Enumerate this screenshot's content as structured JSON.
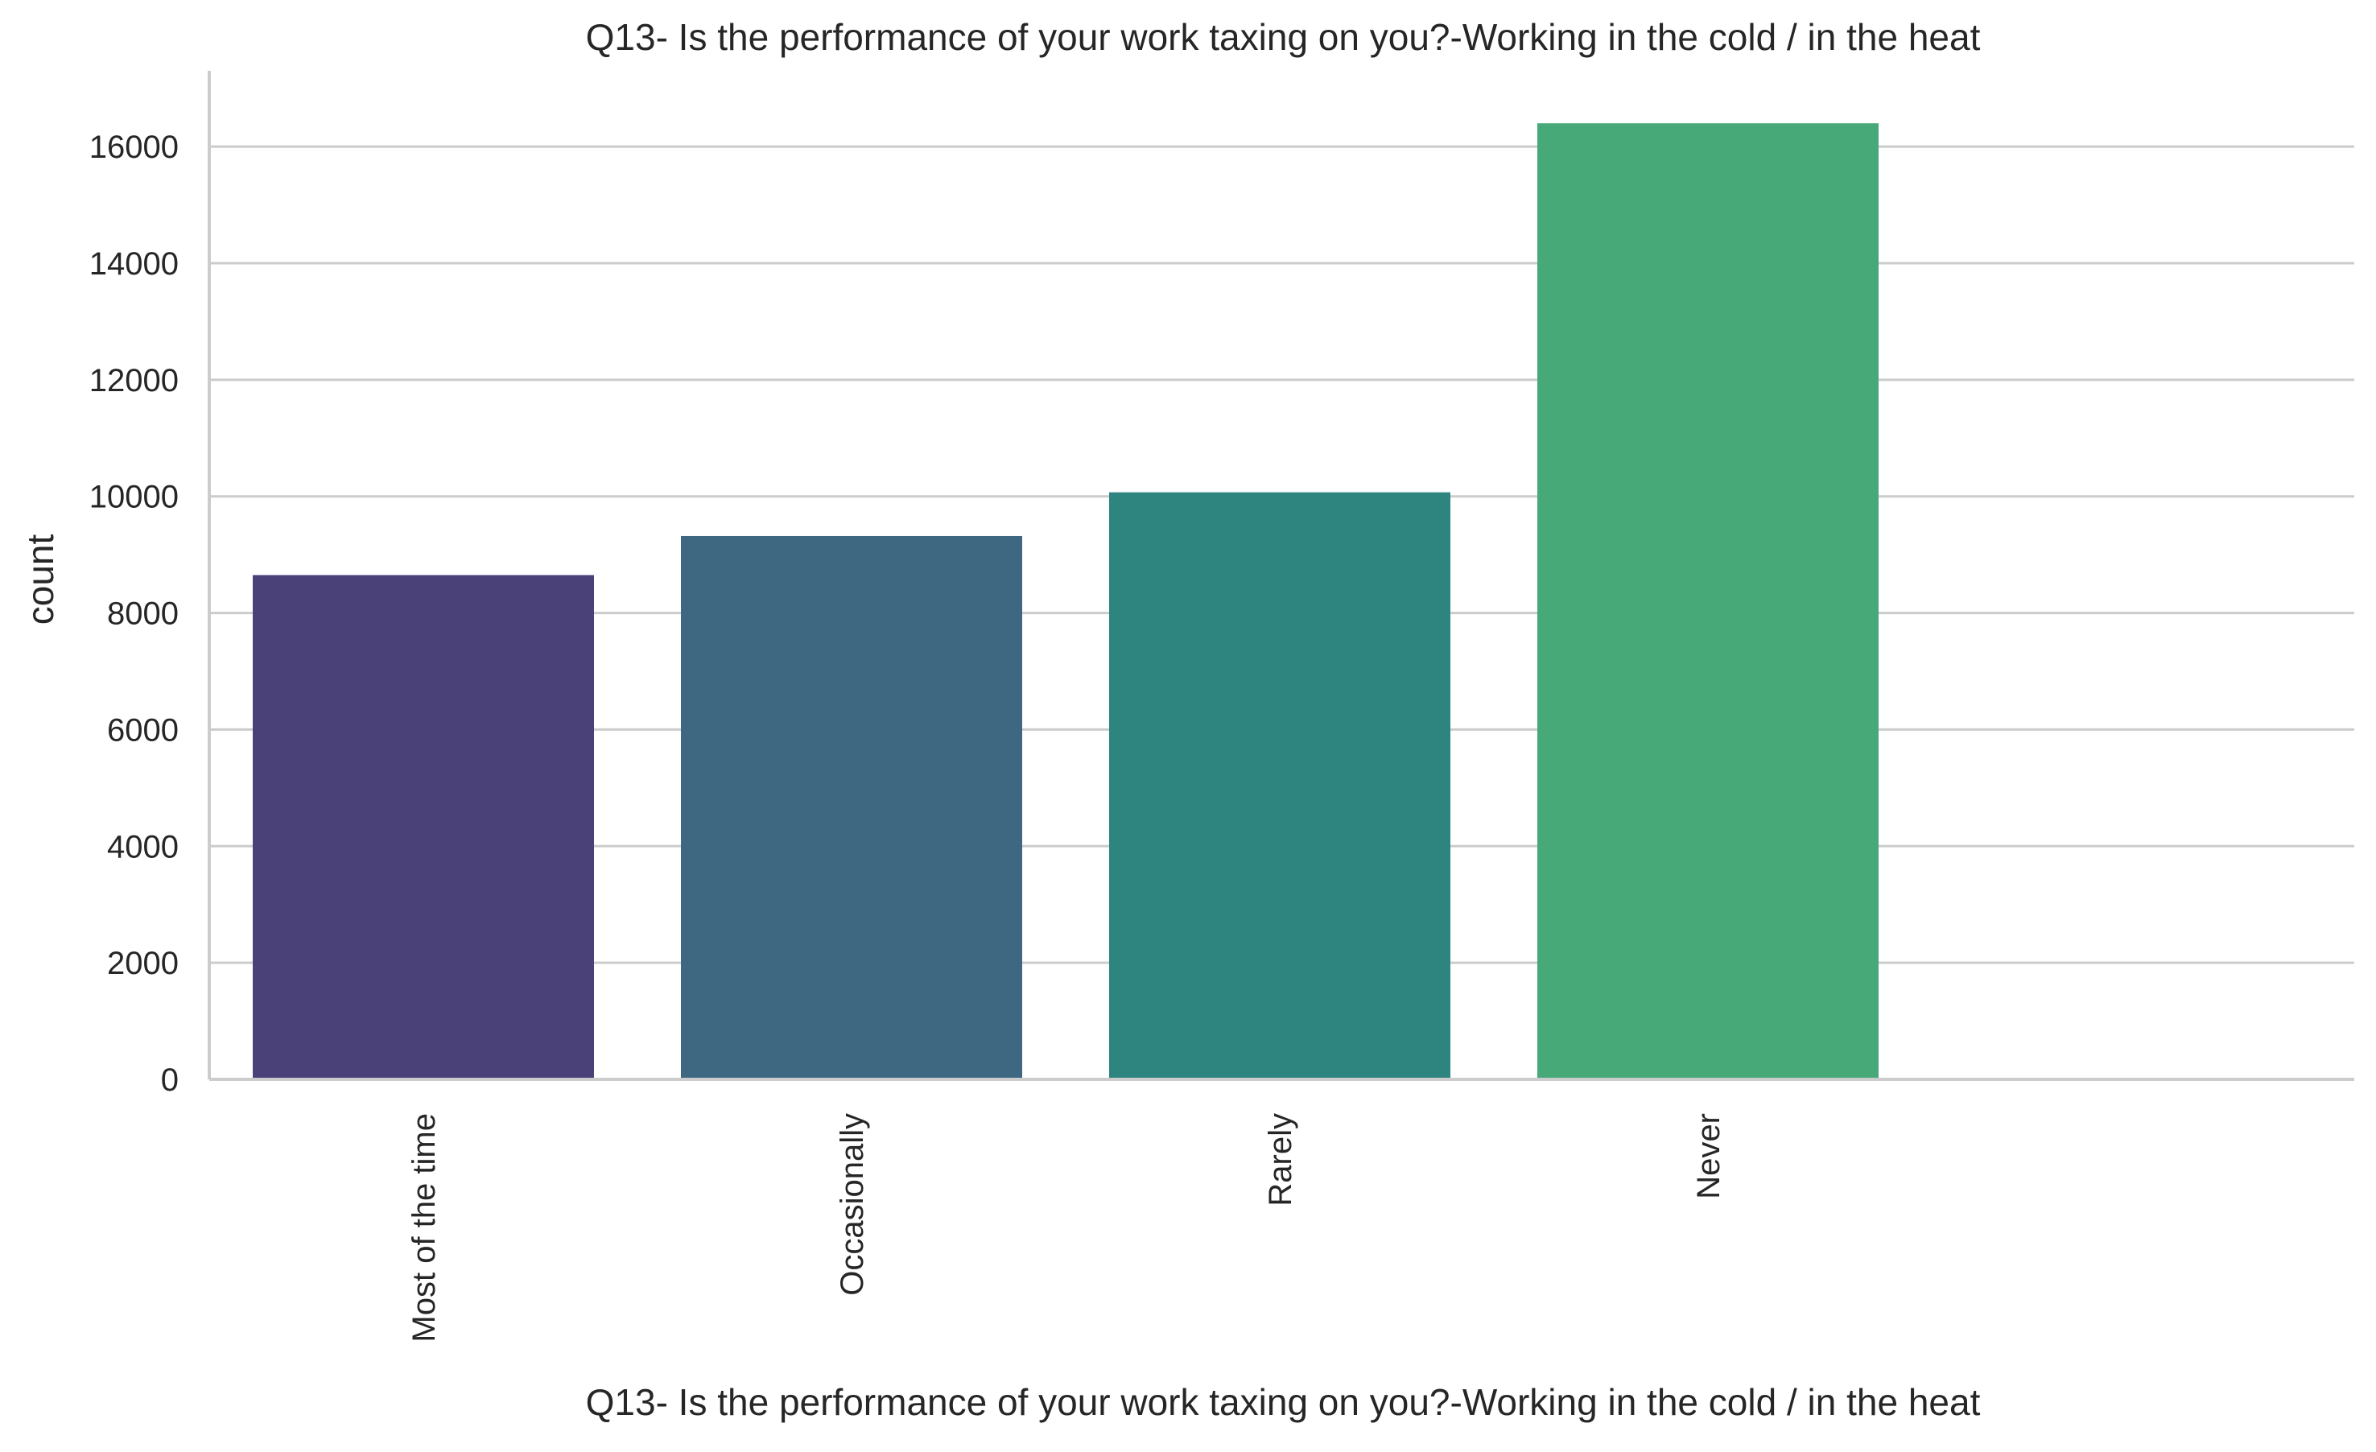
{
  "chart_data": {
    "type": "bar",
    "title": "Q13- Is the performance of your work taxing on you?-Working in the cold / in the heat",
    "xlabel": "Q13- Is the performance of your work taxing on you?-Working in the cold / in the heat",
    "ylabel": "count",
    "categories": [
      "Most of the time",
      "Occasionally",
      "Rarely",
      "Never"
    ],
    "values": [
      8650,
      9320,
      10070,
      16400
    ],
    "ylim": [
      0,
      17300
    ],
    "yticks": [
      0,
      2000,
      4000,
      6000,
      8000,
      10000,
      12000,
      14000,
      16000
    ],
    "grid": "horizontal",
    "colors": [
      "#4a4178",
      "#3e6782",
      "#2e8580",
      "#47a878"
    ],
    "grid_color": "#cccccc",
    "axis_color": "#cccccc"
  }
}
